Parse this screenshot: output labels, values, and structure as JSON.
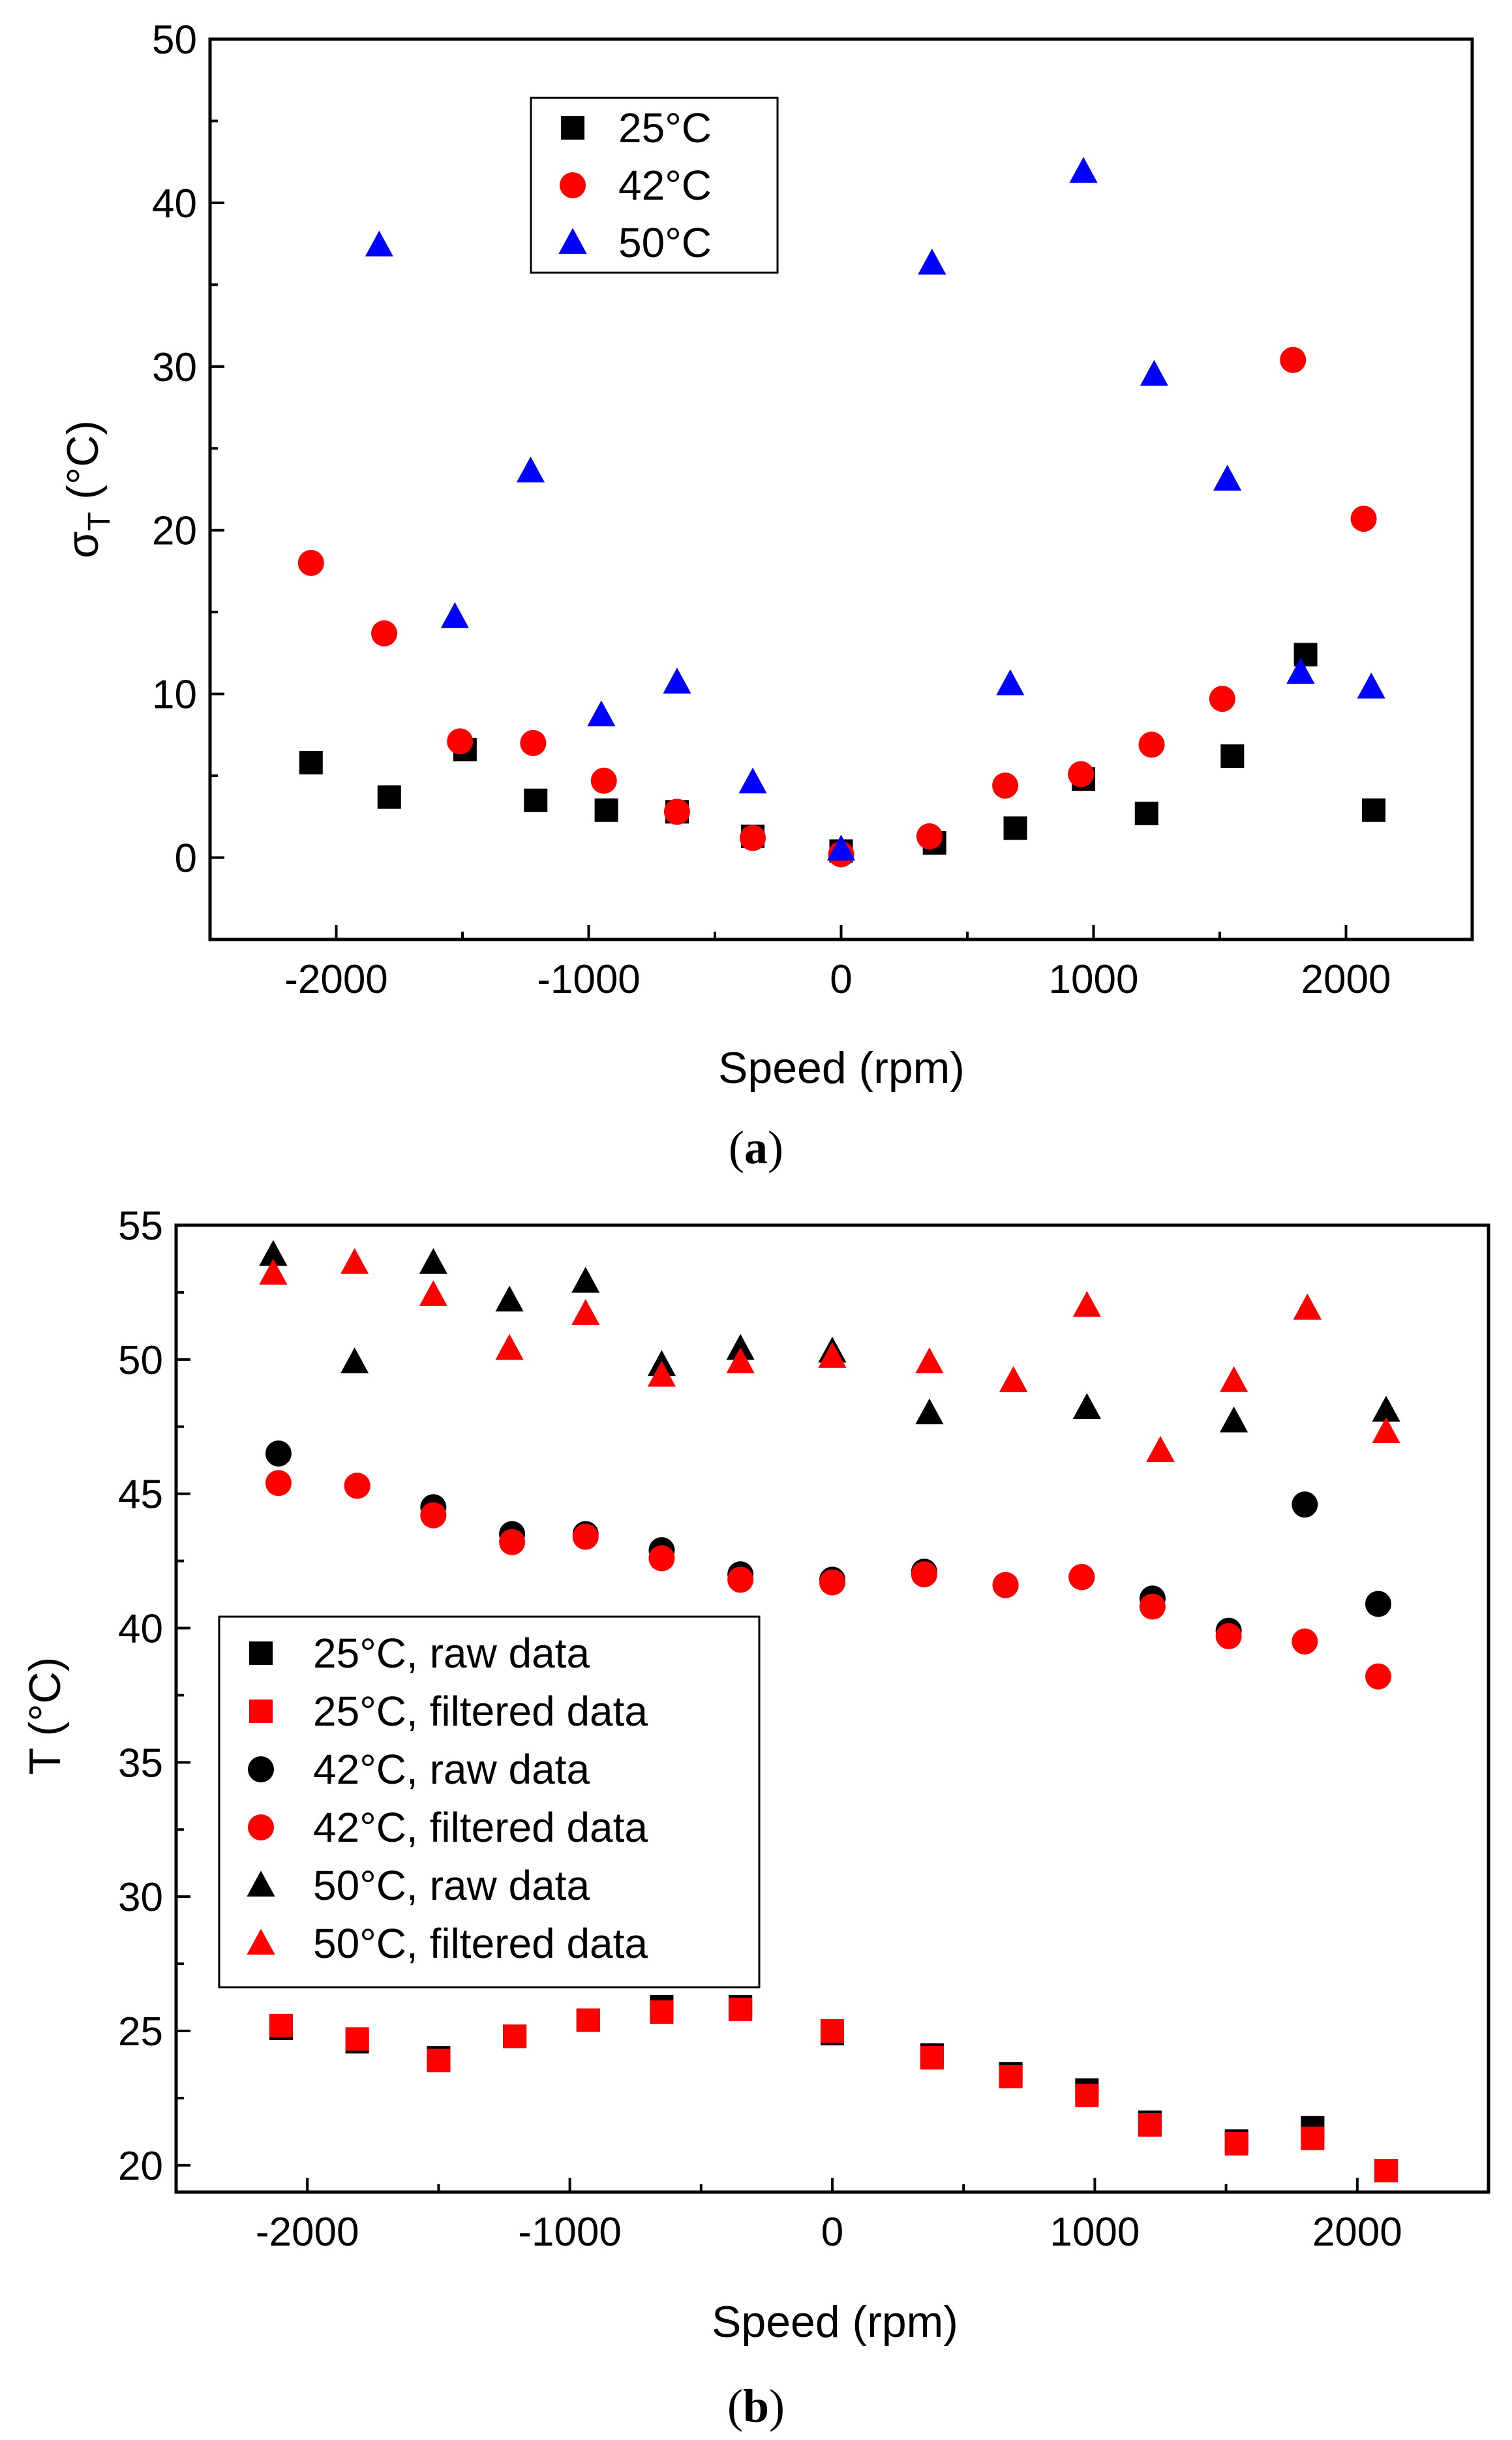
{
  "colors": {
    "s25": "#000000",
    "s42": "#ff0000",
    "s50": "#0000ff",
    "raw": "#000000",
    "filtered": "#ff0000"
  },
  "chart_data": [
    {
      "type": "scatter",
      "caption": {
        "open": "(",
        "letter": "a",
        "close": ")"
      },
      "xlabel": "Speed (rpm)",
      "ylabel": {
        "main": "σ",
        "sub": "T",
        "unit": " (°C)"
      },
      "xlim": [
        -2500,
        2500
      ],
      "ylim": [
        -5,
        50
      ],
      "xticks": [
        -2000,
        -1000,
        0,
        1000,
        2000
      ],
      "yticks": [
        0,
        10,
        20,
        30,
        40,
        50
      ],
      "legend_position": "top-left",
      "series": [
        {
          "name": "25°C",
          "marker": "square",
          "color": "#000000",
          "x": [
            -2100,
            -1790,
            -1490,
            -1210,
            -930,
            -650,
            -350,
            0,
            370,
            690,
            960,
            1210,
            1550,
            1840,
            2110
          ],
          "y": [
            5.8,
            3.7,
            6.6,
            3.5,
            2.9,
            2.8,
            1.3,
            0.4,
            0.9,
            1.8,
            4.8,
            2.7,
            6.2,
            12.4,
            2.9
          ]
        },
        {
          "name": "42°C",
          "marker": "circle",
          "color": "#ff0000",
          "x": [
            -2100,
            -1810,
            -1510,
            -1220,
            -940,
            -650,
            -350,
            0,
            350,
            650,
            950,
            1230,
            1510,
            1790,
            2070
          ],
          "y": [
            18.0,
            13.7,
            7.1,
            7.0,
            4.7,
            2.8,
            1.2,
            0.2,
            1.3,
            4.4,
            5.1,
            6.9,
            9.7,
            30.4,
            20.7
          ]
        },
        {
          "name": "50°C",
          "marker": "triangle",
          "color": "#0000ff",
          "x": [
            -1830,
            -1530,
            -1230,
            -950,
            -650,
            -350,
            0,
            360,
            670,
            960,
            1240,
            1530,
            1820,
            2100
          ],
          "y": [
            37.4,
            14.7,
            23.6,
            8.7,
            10.7,
            4.6,
            0.5,
            36.3,
            10.6,
            41.9,
            29.5,
            23.1,
            11.3,
            10.4
          ]
        }
      ]
    },
    {
      "type": "scatter",
      "caption": {
        "open": "(",
        "letter": "b",
        "close": ")"
      },
      "xlabel": "Speed (rpm)",
      "ylabel": "T (°C)",
      "xlim": [
        -2500,
        2500
      ],
      "ylim": [
        19,
        55
      ],
      "xticks": [
        -2000,
        -1000,
        0,
        1000,
        2000
      ],
      "yticks": [
        20,
        25,
        30,
        35,
        40,
        45,
        50,
        55
      ],
      "legend_position": "bottom-left",
      "series": [
        {
          "name": "25°C, raw data",
          "marker": "square",
          "color": "#000000",
          "x": [
            -2100,
            -1810,
            -1500,
            -1210,
            -930,
            -650,
            -350,
            0,
            380,
            680,
            970,
            1210,
            1540,
            1830,
            2110
          ],
          "y": [
            25.1,
            24.6,
            24.0,
            24.8,
            25.4,
            25.9,
            25.9,
            24.9,
            24.1,
            23.4,
            22.8,
            21.6,
            20.9,
            21.4,
            19.8
          ]
        },
        {
          "name": "25°C, filtered data",
          "marker": "square",
          "color": "#ff0000",
          "x": [
            -2100,
            -1810,
            -1500,
            -1210,
            -930,
            -650,
            -350,
            0,
            380,
            680,
            970,
            1210,
            1540,
            1830,
            2110
          ],
          "y": [
            25.2,
            24.7,
            23.9,
            24.8,
            25.4,
            25.7,
            25.8,
            25.0,
            24.0,
            23.3,
            22.6,
            21.5,
            20.8,
            21.0,
            19.8
          ]
        },
        {
          "name": "42°C, raw data",
          "marker": "circle",
          "color": "#000000",
          "x": [
            -2110,
            -1810,
            -1520,
            -1220,
            -940,
            -650,
            -350,
            0,
            350,
            660,
            950,
            1220,
            1510,
            1800,
            2080
          ],
          "y": [
            46.5,
            45.3,
            44.5,
            43.5,
            43.5,
            42.9,
            42.0,
            41.8,
            42.1,
            41.6,
            41.9,
            41.1,
            39.9,
            44.6,
            40.9
          ]
        },
        {
          "name": "42°C, filtered data",
          "marker": "circle",
          "color": "#ff0000",
          "x": [
            -2110,
            -1810,
            -1520,
            -1220,
            -940,
            -650,
            -350,
            0,
            350,
            660,
            950,
            1220,
            1510,
            1800,
            2080
          ],
          "y": [
            45.4,
            45.3,
            44.2,
            43.2,
            43.4,
            42.6,
            41.8,
            41.7,
            42.0,
            41.6,
            41.9,
            40.8,
            39.7,
            39.5,
            38.2
          ]
        },
        {
          "name": "50°C, raw data",
          "marker": "triangle",
          "color": "#000000",
          "x": [
            -2130,
            -1820,
            -1520,
            -1230,
            -940,
            -650,
            -350,
            0,
            370,
            690,
            970,
            1250,
            1530,
            1810,
            2110
          ],
          "y": [
            53.9,
            49.9,
            53.6,
            52.2,
            52.9,
            49.8,
            50.4,
            50.3,
            48.0,
            49.2,
            48.2,
            46.6,
            47.7,
            51.9,
            48.1
          ]
        },
        {
          "name": "50°C, filtered data",
          "marker": "triangle",
          "color": "#ff0000",
          "x": [
            -2130,
            -1820,
            -1520,
            -1230,
            -940,
            -650,
            -350,
            0,
            370,
            690,
            970,
            1250,
            1530,
            1810,
            2110
          ],
          "y": [
            53.2,
            53.6,
            52.4,
            50.4,
            51.7,
            49.4,
            49.9,
            50.1,
            49.9,
            49.2,
            52.0,
            46.6,
            49.2,
            51.9,
            47.3
          ]
        }
      ]
    }
  ]
}
